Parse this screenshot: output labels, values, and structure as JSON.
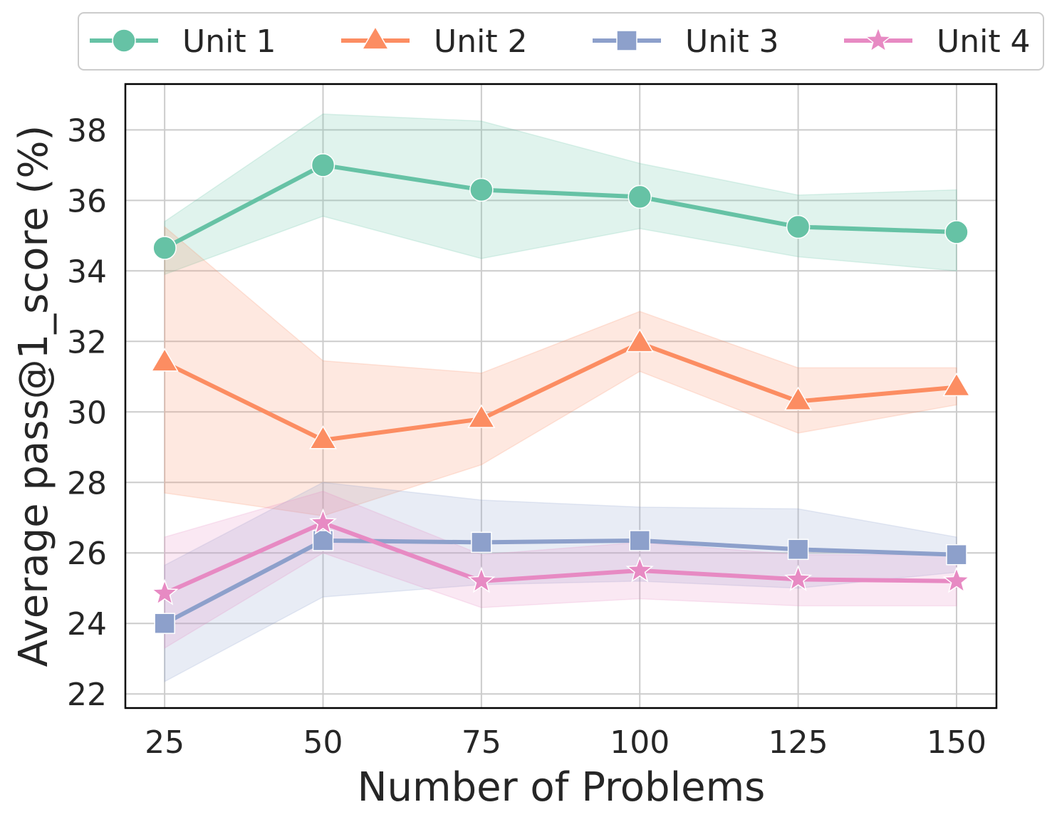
{
  "chart_data": {
    "type": "line",
    "title": "",
    "xlabel": "Number of Problems",
    "ylabel": "Average pass@1_score (%)",
    "x": [
      25,
      50,
      75,
      100,
      125,
      150
    ],
    "xticks": [
      "25",
      "50",
      "75",
      "100",
      "125",
      "150"
    ],
    "yticks": [
      "22",
      "24",
      "26",
      "28",
      "30",
      "32",
      "34",
      "36",
      "38"
    ],
    "ylim": [
      21.6,
      39.3
    ],
    "xlim": [
      18.8,
      156.3
    ],
    "grid": true,
    "legend_position": "top",
    "series": [
      {
        "name": "Unit 1",
        "color": "#66c2a5",
        "marker": "circle",
        "values": [
          34.65,
          37.0,
          36.3,
          36.1,
          35.25,
          35.1
        ],
        "lower": [
          33.9,
          35.55,
          34.35,
          35.2,
          34.4,
          34.0
        ],
        "upper": [
          35.4,
          38.45,
          38.25,
          37.05,
          36.15,
          36.3
        ]
      },
      {
        "name": "Unit 2",
        "color": "#fc8d62",
        "marker": "triangle",
        "values": [
          31.4,
          29.2,
          29.8,
          31.95,
          30.3,
          30.7
        ],
        "lower": [
          27.7,
          27.05,
          28.5,
          31.15,
          29.4,
          30.2
        ],
        "upper": [
          35.25,
          31.45,
          31.1,
          32.85,
          31.25,
          31.25
        ]
      },
      {
        "name": "Unit 3",
        "color": "#8da0cb",
        "marker": "square",
        "values": [
          24.0,
          26.35,
          26.3,
          26.35,
          26.1,
          25.95
        ],
        "lower": [
          22.35,
          24.75,
          25.1,
          25.2,
          25.0,
          25.45
        ],
        "upper": [
          25.65,
          28.0,
          27.5,
          27.3,
          27.25,
          26.45
        ]
      },
      {
        "name": "Unit 4",
        "color": "#e78ac3",
        "marker": "star",
        "values": [
          24.85,
          26.85,
          25.2,
          25.5,
          25.25,
          25.2
        ],
        "lower": [
          23.3,
          26.0,
          24.45,
          24.7,
          24.5,
          24.5
        ],
        "upper": [
          26.45,
          27.75,
          25.95,
          26.3,
          25.95,
          25.95
        ]
      }
    ]
  }
}
